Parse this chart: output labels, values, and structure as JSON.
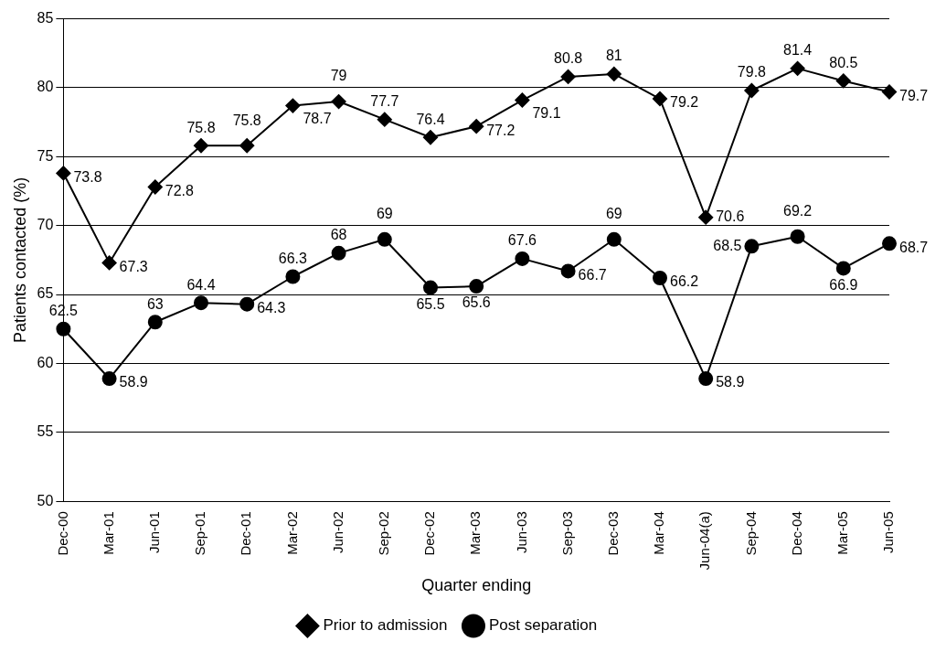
{
  "chart_data": {
    "type": "line",
    "xlabel": "Quarter ending",
    "ylabel": "Patients contacted (%)",
    "categories": [
      "Dec-00",
      "Mar-01",
      "Jun-01",
      "Sep-01",
      "Dec-01",
      "Mar-02",
      "Jun-02",
      "Sep-02",
      "Dec-02",
      "Mar-03",
      "Jun-03",
      "Sep-03",
      "Dec-03",
      "Mar-04",
      "Jun-04(a)",
      "Sep-04",
      "Dec-04",
      "Mar-05",
      "Jun-05"
    ],
    "series": [
      {
        "name": "Prior to admission",
        "color": "#000000",
        "marker": "diamond",
        "values": [
          73.8,
          67.3,
          72.8,
          75.8,
          75.8,
          78.7,
          79,
          77.7,
          76.4,
          77.2,
          79.1,
          80.8,
          81,
          79.2,
          70.6,
          79.8,
          81.4,
          80.5,
          79.7
        ]
      },
      {
        "name": "Post separation",
        "color": "#000000",
        "marker": "circle",
        "values": [
          62.5,
          58.9,
          63,
          64.4,
          64.3,
          66.3,
          68,
          69,
          65.5,
          65.6,
          67.6,
          66.7,
          69,
          66.2,
          58.9,
          68.5,
          69.2,
          66.9,
          68.7
        ]
      }
    ],
    "ylim": [
      50,
      85
    ],
    "yticks": [
      50,
      55,
      60,
      65,
      70,
      75,
      80,
      85
    ],
    "grid": "y",
    "legend": "bottom",
    "data_labels": true,
    "line_style": "solid"
  }
}
